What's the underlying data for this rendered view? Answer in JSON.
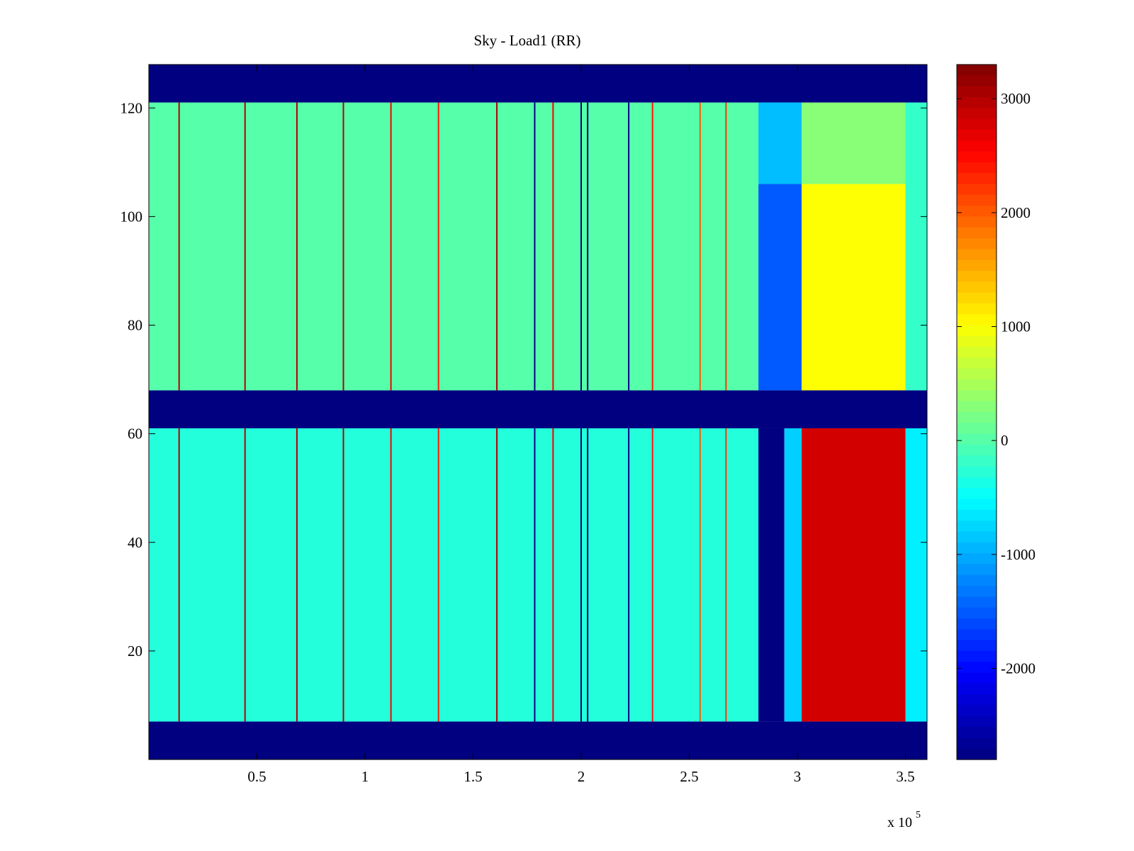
{
  "chart_data": {
    "type": "heatmap",
    "title": "Sky - Load1 (RR)",
    "xlabel": "",
    "ylabel": "",
    "x_range": [
      0,
      360000
    ],
    "y_range": [
      0,
      128
    ],
    "x_ticks": [
      {
        "value": 50000,
        "label": "0.5"
      },
      {
        "value": 100000,
        "label": "1"
      },
      {
        "value": 150000,
        "label": "1.5"
      },
      {
        "value": 200000,
        "label": "2"
      },
      {
        "value": 250000,
        "label": "2.5"
      },
      {
        "value": 300000,
        "label": "3"
      },
      {
        "value": 350000,
        "label": "3.5"
      }
    ],
    "x_multiplier_label": {
      "base": "x 10",
      "exponent": "5"
    },
    "y_ticks": [
      {
        "value": 20,
        "label": "20"
      },
      {
        "value": 40,
        "label": "40"
      },
      {
        "value": 60,
        "label": "60"
      },
      {
        "value": 80,
        "label": "80"
      },
      {
        "value": 100,
        "label": "100"
      },
      {
        "value": 120,
        "label": "120"
      }
    ],
    "colormap": "jet",
    "color_range": [
      -2800,
      3300
    ],
    "colorbar_ticks": [
      {
        "value": 3000,
        "label": "3000"
      },
      {
        "value": 2000,
        "label": "2000"
      },
      {
        "value": 1000,
        "label": "1000"
      },
      {
        "value": 0,
        "label": "0"
      },
      {
        "value": -1000,
        "label": "-1000"
      },
      {
        "value": -2000,
        "label": "-2000"
      }
    ],
    "regions": [
      {
        "x": [
          0,
          360000
        ],
        "y": [
          0,
          7
        ],
        "value": -2800
      },
      {
        "x": [
          0,
          360000
        ],
        "y": [
          61,
          68
        ],
        "value": -2800
      },
      {
        "x": [
          0,
          360000
        ],
        "y": [
          121,
          128
        ],
        "value": -2800
      },
      {
        "x": [
          0,
          282000
        ],
        "y": [
          7,
          61
        ],
        "value": -300
      },
      {
        "x": [
          0,
          282000
        ],
        "y": [
          68,
          121
        ],
        "value": 0
      },
      {
        "x": [
          282000,
          294000
        ],
        "y": [
          7,
          61
        ],
        "value": -2800
      },
      {
        "x": [
          294000,
          302000
        ],
        "y": [
          7,
          61
        ],
        "value": -800
      },
      {
        "x": [
          282000,
          302000
        ],
        "y": [
          68,
          106
        ],
        "value": -1500
      },
      {
        "x": [
          282000,
          302000
        ],
        "y": [
          106,
          121
        ],
        "value": -900
      },
      {
        "x": [
          302000,
          350000
        ],
        "y": [
          7,
          61
        ],
        "value": 2800
      },
      {
        "x": [
          302000,
          350000
        ],
        "y": [
          68,
          106
        ],
        "value": 1000
      },
      {
        "x": [
          302000,
          350000
        ],
        "y": [
          106,
          121
        ],
        "value": 300
      },
      {
        "x": [
          350000,
          360000
        ],
        "y": [
          7,
          61
        ],
        "value": -600
      },
      {
        "x": [
          350000,
          360000
        ],
        "y": [
          68,
          121
        ],
        "value": -200
      }
    ],
    "vertical_streaks": [
      {
        "x": 14000,
        "value": 3000
      },
      {
        "x": 44500,
        "value": 3000
      },
      {
        "x": 68500,
        "value": 3000
      },
      {
        "x": 90000,
        "value": 3000
      },
      {
        "x": 112000,
        "value": 2600
      },
      {
        "x": 134000,
        "value": 2400
      },
      {
        "x": 161000,
        "value": 3000
      },
      {
        "x": 178500,
        "value": -2800
      },
      {
        "x": 187000,
        "value": 2600
      },
      {
        "x": 200000,
        "value": -2800
      },
      {
        "x": 203000,
        "value": -2800
      },
      {
        "x": 222000,
        "value": -2800
      },
      {
        "x": 233000,
        "value": 2400
      },
      {
        "x": 255000,
        "value": 2000
      },
      {
        "x": 267000,
        "value": 2200
      }
    ]
  }
}
